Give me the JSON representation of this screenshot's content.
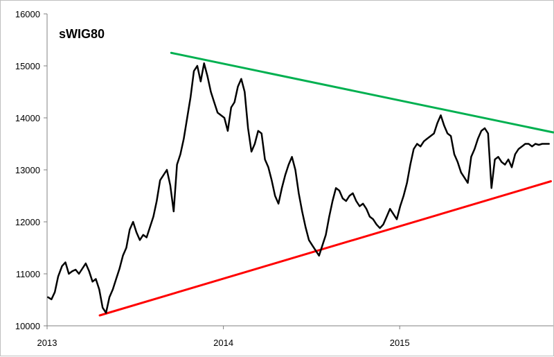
{
  "chart_data": {
    "type": "line",
    "title": "sWIG80",
    "xlabel": "",
    "ylabel": "",
    "ylim": [
      10000,
      16000
    ],
    "xlim": [
      "2013-01-01",
      "2015-11-15"
    ],
    "x_ticks": [
      "2013",
      "2014",
      "2015"
    ],
    "y_ticks": [
      "10000",
      "11000",
      "12000",
      "13000",
      "14000",
      "15000",
      "16000"
    ],
    "grid": false,
    "legend": "none",
    "colors": {
      "series": "#000000",
      "resistance": "#00b050",
      "support": "#ff0000",
      "axis": "#808080"
    },
    "series": [
      {
        "x": [
          "2013-01-03",
          "2013-01-10",
          "2013-01-17",
          "2013-01-24",
          "2013-02-01",
          "2013-02-08",
          "2013-02-15",
          "2013-02-22",
          "2013-03-01",
          "2013-03-08",
          "2013-03-15",
          "2013-03-22",
          "2013-03-29",
          "2013-04-05",
          "2013-04-12",
          "2013-04-19",
          "2013-04-26",
          "2013-05-03",
          "2013-05-10",
          "2013-05-17",
          "2013-05-24",
          "2013-05-31",
          "2013-06-07",
          "2013-06-14",
          "2013-06-21",
          "2013-06-28",
          "2013-07-05",
          "2013-07-12",
          "2013-07-19",
          "2013-07-26",
          "2013-08-02",
          "2013-08-09",
          "2013-08-16",
          "2013-08-23",
          "2013-08-30",
          "2013-09-06",
          "2013-09-13",
          "2013-09-20",
          "2013-09-27",
          "2013-10-04",
          "2013-10-11",
          "2013-10-18",
          "2013-10-25",
          "2013-11-01",
          "2013-11-08",
          "2013-11-15",
          "2013-11-22",
          "2013-11-29",
          "2013-12-06",
          "2013-12-13",
          "2013-12-20",
          "2013-12-27",
          "2014-01-03",
          "2014-01-10",
          "2014-01-17",
          "2014-01-24",
          "2014-01-31",
          "2014-02-07",
          "2014-02-14",
          "2014-02-21",
          "2014-02-28",
          "2014-03-07",
          "2014-03-14",
          "2014-03-21",
          "2014-03-28",
          "2014-04-04",
          "2014-04-11",
          "2014-04-18",
          "2014-04-25",
          "2014-05-02",
          "2014-05-09",
          "2014-05-16",
          "2014-05-23",
          "2014-05-30",
          "2014-06-06",
          "2014-06-13",
          "2014-06-20",
          "2014-06-27",
          "2014-07-04",
          "2014-07-11",
          "2014-07-18",
          "2014-07-25",
          "2014-08-01",
          "2014-08-08",
          "2014-08-15",
          "2014-08-22",
          "2014-08-29",
          "2014-09-05",
          "2014-09-12",
          "2014-09-19",
          "2014-09-26",
          "2014-10-03",
          "2014-10-10",
          "2014-10-17",
          "2014-10-24",
          "2014-10-31",
          "2014-11-07",
          "2014-11-14",
          "2014-11-21",
          "2014-11-28",
          "2014-12-05",
          "2014-12-12",
          "2014-12-19",
          "2014-12-26",
          "2015-01-02",
          "2015-01-09",
          "2015-01-16",
          "2015-01-23",
          "2015-01-30",
          "2015-02-06",
          "2015-02-13",
          "2015-02-20",
          "2015-02-27",
          "2015-03-06",
          "2015-03-13",
          "2015-03-20",
          "2015-03-27",
          "2015-04-03",
          "2015-04-10",
          "2015-04-17",
          "2015-04-24",
          "2015-05-01",
          "2015-05-08",
          "2015-05-15",
          "2015-05-22",
          "2015-05-29",
          "2015-06-05",
          "2015-06-12",
          "2015-06-19",
          "2015-06-26",
          "2015-07-03",
          "2015-07-10",
          "2015-07-17",
          "2015-07-24",
          "2015-07-31",
          "2015-08-07",
          "2015-08-14",
          "2015-08-21",
          "2015-08-28",
          "2015-09-04",
          "2015-09-11",
          "2015-09-18",
          "2015-09-25",
          "2015-10-02",
          "2015-10-09",
          "2015-10-16",
          "2015-10-23",
          "2015-10-30",
          "2015-11-06"
        ],
        "values": [
          10550,
          10510,
          10650,
          10950,
          11150,
          11220,
          11000,
          11050,
          11080,
          11000,
          11100,
          11200,
          11050,
          10850,
          10900,
          10700,
          10350,
          10250,
          10550,
          10700,
          10900,
          11100,
          11350,
          11500,
          11850,
          12000,
          11800,
          11650,
          11750,
          11700,
          11900,
          12100,
          12400,
          12800,
          12900,
          13000,
          12700,
          12200,
          13100,
          13300,
          13600,
          14000,
          14400,
          14900,
          15000,
          14700,
          15050,
          14800,
          14500,
          14300,
          14100,
          14050,
          14000,
          13750,
          14200,
          14300,
          14600,
          14750,
          14500,
          13800,
          13350,
          13500,
          13750,
          13700,
          13200,
          13050,
          12800,
          12500,
          12350,
          12650,
          12900,
          13100,
          13250,
          13000,
          12550,
          12200,
          11900,
          11650,
          11550,
          11450,
          11350,
          11550,
          11750,
          12100,
          12400,
          12650,
          12600,
          12450,
          12400,
          12500,
          12550,
          12400,
          12300,
          12350,
          12250,
          12100,
          12050,
          11950,
          11880,
          11950,
          12100,
          12250,
          12150,
          12050,
          12300,
          12500,
          12750,
          13100,
          13400,
          13500,
          13450,
          13550,
          13600,
          13650,
          13700,
          13900,
          14050,
          13850,
          13700,
          13650,
          13300,
          13150,
          12950,
          12850,
          12750,
          13250,
          13400,
          13600,
          13750,
          13800,
          13700,
          12650,
          13200,
          13250,
          13150,
          13100,
          13200,
          13050,
          13300,
          13400,
          13450,
          13500,
          13500,
          13450,
          13500,
          13480,
          13500,
          13500,
          13500
        ]
      }
    ],
    "trendlines": [
      {
        "name": "resistance",
        "x": [
          "2013-09-15",
          "2015-11-15"
        ],
        "y": [
          15250,
          13720
        ]
      },
      {
        "name": "support",
        "x": [
          "2013-04-20",
          "2015-11-10"
        ],
        "y": [
          10200,
          12780
        ]
      }
    ]
  }
}
